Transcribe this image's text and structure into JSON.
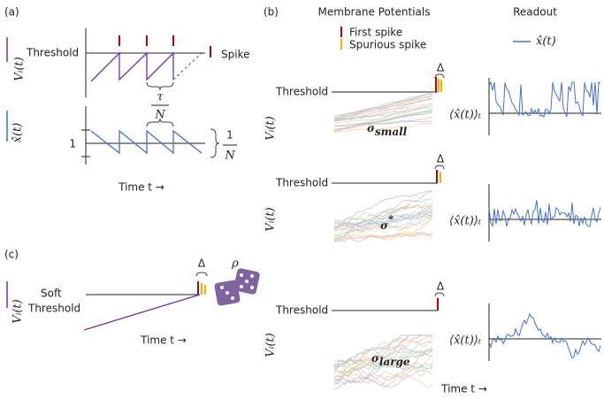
{
  "panel_a": {
    "label": "(a)",
    "threshold": "Threshold",
    "spike": "Spike",
    "v_label": "Vᵢ(t)",
    "x_label": "x̂(t)",
    "tau": "τ",
    "tau_n": "N",
    "one": "1",
    "frac_one": "1",
    "frac_n": "N",
    "time": "Time t →"
  },
  "panel_b": {
    "label": "(b)",
    "membrane_title": "Membrane Potentials",
    "readout_title": "Readout",
    "first_spike": "First spike",
    "spurious_spike": "Spurious spike",
    "readout_legend": "x̂(t)",
    "time": "Time t →",
    "rows": [
      {
        "threshold": "Threshold",
        "delta": "Δ",
        "v_label": "Vᵢ(t)",
        "sigma": "σ",
        "sigma_sub": "small",
        "mean_label": "⟨x̂(t)⟩ₜ"
      },
      {
        "threshold": "Threshold",
        "delta": "Δ",
        "v_label": "Vᵢ(t)",
        "sigma": "σ",
        "sigma_sub": "*",
        "mean_label": "⟨x̂(t)⟩ₜ"
      },
      {
        "threshold": "Threshold",
        "delta": "Δ",
        "v_label": "Vᵢ(t)",
        "sigma": "σ",
        "sigma_sub": "large",
        "mean_label": "⟨x̂(t)⟩ₜ"
      }
    ]
  },
  "panel_c": {
    "label": "(c)",
    "soft": "Soft",
    "threshold": "Threshold",
    "v_label": "Vᵢ(t)",
    "delta": "Δ",
    "rho": "ρ",
    "time": "Time t →"
  }
}
